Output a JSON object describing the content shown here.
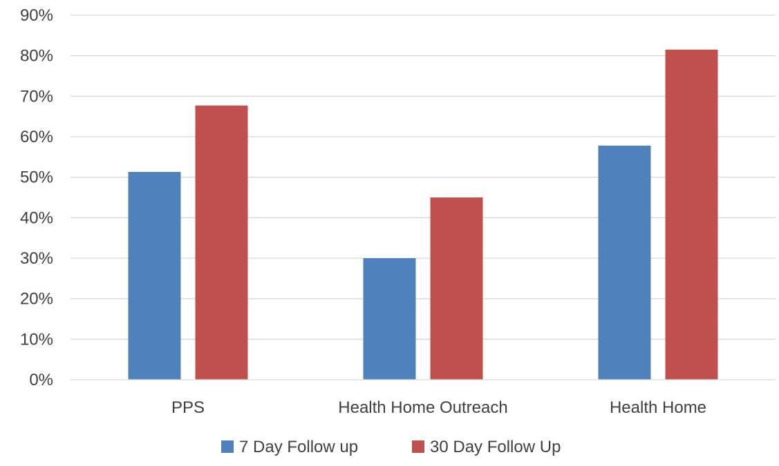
{
  "chart_data": {
    "type": "bar",
    "categories": [
      "PPS",
      "Health Home Outreach",
      "Health Home"
    ],
    "series": [
      {
        "name": "7 Day Follow up",
        "values": [
          0.513,
          0.3,
          0.578
        ],
        "color": "#4f81bd"
      },
      {
        "name": "30 Day Follow Up",
        "values": [
          0.677,
          0.45,
          0.815
        ],
        "color": "#c0504d"
      }
    ],
    "title": "",
    "xlabel": "",
    "ylabel": "",
    "ylim": [
      0,
      0.9
    ],
    "yticks": [
      "0%",
      "10%",
      "20%",
      "30%",
      "40%",
      "50%",
      "60%",
      "70%",
      "80%",
      "90%"
    ],
    "grid": true,
    "legend_position": "bottom"
  }
}
